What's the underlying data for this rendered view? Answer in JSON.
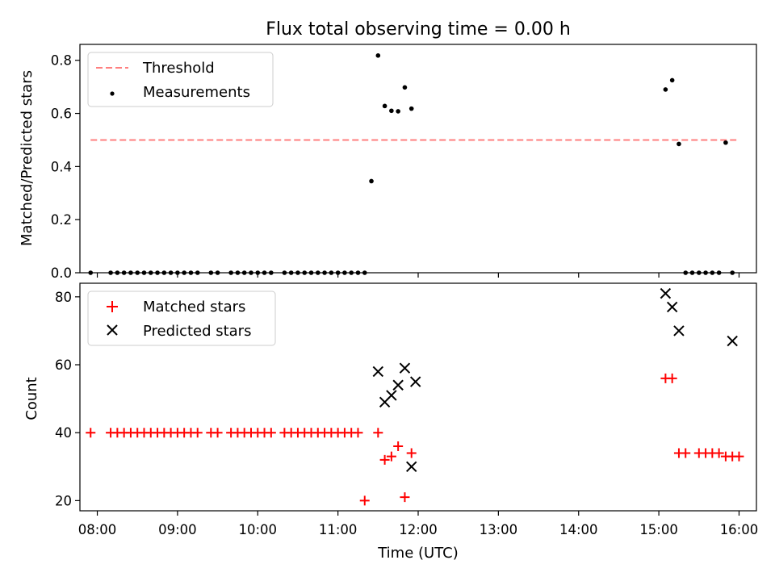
{
  "chart_data": [
    {
      "type": "scatter",
      "title": "Flux total observing time = 0.00 h",
      "xlabel": "",
      "ylabel": "Matched/Predicted stars",
      "xlim": [
        "07:47",
        "16:13"
      ],
      "ylim": [
        0,
        0.86
      ],
      "yticks": [
        "0.0",
        "0.2",
        "0.4",
        "0.6",
        "0.8"
      ],
      "legend_position": "upper-left",
      "series": [
        {
          "name": "Threshold",
          "kind": "dashed-line",
          "color": "#ff7f7f",
          "x": [
            "07:55",
            "15:58"
          ],
          "y": [
            0.5,
            0.5
          ]
        },
        {
          "name": "Measurements",
          "kind": "dot",
          "color": "#000000",
          "x": [
            "07:55",
            "08:10",
            "08:15",
            "08:20",
            "08:25",
            "08:30",
            "08:35",
            "08:40",
            "08:45",
            "08:50",
            "08:55",
            "09:00",
            "09:05",
            "09:10",
            "09:15",
            "09:25",
            "09:30",
            "09:40",
            "09:45",
            "09:50",
            "09:55",
            "10:00",
            "10:05",
            "10:10",
            "10:20",
            "10:25",
            "10:30",
            "10:35",
            "10:40",
            "10:45",
            "10:50",
            "10:55",
            "11:00",
            "11:05",
            "11:10",
            "11:15",
            "11:20",
            "11:25",
            "11:30",
            "11:35",
            "11:40",
            "11:45",
            "11:50",
            "11:55",
            "15:05",
            "15:10",
            "15:15",
            "15:20",
            "15:25",
            "15:30",
            "15:35",
            "15:40",
            "15:45",
            "15:50",
            "15:55"
          ],
          "y": [
            0,
            0,
            0,
            0,
            0,
            0,
            0,
            0,
            0,
            0,
            0,
            0,
            0,
            0,
            0,
            0,
            0,
            0,
            0,
            0,
            0,
            0,
            0,
            0,
            0,
            0,
            0,
            0,
            0,
            0,
            0,
            0,
            0,
            0,
            0,
            0,
            0,
            0.345,
            0.818,
            0.628,
            0.61,
            0.608,
            0.698,
            0.618,
            0.69,
            0.725,
            0.485,
            0,
            0,
            0,
            0,
            0,
            0,
            0.49,
            0
          ]
        }
      ]
    },
    {
      "type": "scatter",
      "title": "",
      "xlabel": "Time (UTC)",
      "ylabel": "Count",
      "xlim": [
        "07:47",
        "16:13"
      ],
      "ylim": [
        17,
        84
      ],
      "xticks": [
        "08:00",
        "09:00",
        "10:00",
        "11:00",
        "12:00",
        "13:00",
        "14:00",
        "15:00",
        "16:00"
      ],
      "yticks": [
        "20",
        "40",
        "60",
        "80"
      ],
      "legend_position": "upper-left",
      "series": [
        {
          "name": "Matched stars",
          "marker": "plus",
          "color": "#ff0000",
          "x": [
            "07:55",
            "08:10",
            "08:15",
            "08:20",
            "08:25",
            "08:30",
            "08:35",
            "08:40",
            "08:45",
            "08:50",
            "08:55",
            "09:00",
            "09:05",
            "09:10",
            "09:15",
            "09:25",
            "09:30",
            "09:40",
            "09:45",
            "09:50",
            "09:55",
            "10:00",
            "10:05",
            "10:10",
            "10:20",
            "10:25",
            "10:30",
            "10:35",
            "10:40",
            "10:45",
            "10:50",
            "10:55",
            "11:00",
            "11:05",
            "11:10",
            "11:15",
            "11:20",
            "11:30",
            "11:35",
            "11:40",
            "11:45",
            "11:50",
            "11:55",
            "15:05",
            "15:10",
            "15:15",
            "15:20",
            "15:30",
            "15:35",
            "15:40",
            "15:45",
            "15:50",
            "15:55",
            "16:00"
          ],
          "y": [
            40,
            40,
            40,
            40,
            40,
            40,
            40,
            40,
            40,
            40,
            40,
            40,
            40,
            40,
            40,
            40,
            40,
            40,
            40,
            40,
            40,
            40,
            40,
            40,
            40,
            40,
            40,
            40,
            40,
            40,
            40,
            40,
            40,
            40,
            40,
            40,
            20,
            40,
            32,
            33,
            36,
            21,
            34,
            56,
            56,
            34,
            34,
            34,
            34,
            34,
            34,
            33,
            33,
            33
          ]
        },
        {
          "name": "Predicted stars",
          "marker": "x",
          "color": "#000000",
          "x": [
            "11:30",
            "11:35",
            "11:40",
            "11:45",
            "11:50",
            "11:55",
            "11:58",
            "15:05",
            "15:10",
            "15:15",
            "15:55"
          ],
          "y": [
            58,
            49,
            51,
            54,
            59,
            30,
            55,
            81,
            77,
            70,
            67
          ]
        }
      ]
    }
  ]
}
